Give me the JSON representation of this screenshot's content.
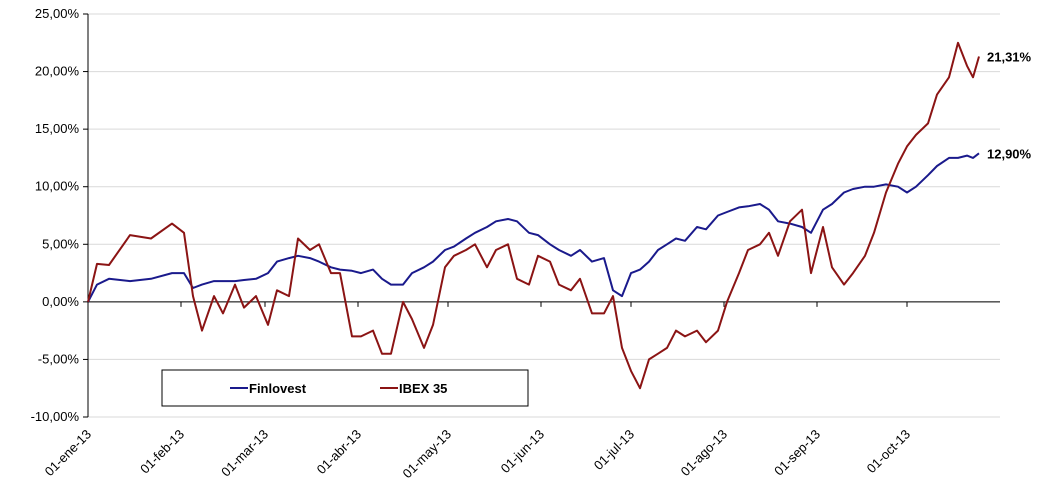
{
  "chart_data": {
    "type": "line",
    "x": [
      "2013-01-01",
      "2013-01-04",
      "2013-01-08",
      "2013-01-15",
      "2013-01-22",
      "2013-01-29",
      "2013-02-02",
      "2013-02-05",
      "2013-02-08",
      "2013-02-12",
      "2013-02-15",
      "2013-02-19",
      "2013-02-22",
      "2013-02-26",
      "2013-03-02",
      "2013-03-05",
      "2013-03-09",
      "2013-03-12",
      "2013-03-16",
      "2013-03-19",
      "2013-03-23",
      "2013-03-26",
      "2013-03-30",
      "2013-04-02",
      "2013-04-06",
      "2013-04-09",
      "2013-04-12",
      "2013-04-16",
      "2013-04-19",
      "2013-04-23",
      "2013-04-26",
      "2013-04-30",
      "2013-05-03",
      "2013-05-07",
      "2013-05-10",
      "2013-05-14",
      "2013-05-17",
      "2013-05-21",
      "2013-05-24",
      "2013-05-28",
      "2013-05-31",
      "2013-06-04",
      "2013-06-07",
      "2013-06-11",
      "2013-06-14",
      "2013-06-18",
      "2013-06-22",
      "2013-06-25",
      "2013-06-28",
      "2013-07-01",
      "2013-07-04",
      "2013-07-07",
      "2013-07-10",
      "2013-07-13",
      "2013-07-16",
      "2013-07-19",
      "2013-07-23",
      "2013-07-26",
      "2013-07-30",
      "2013-08-02",
      "2013-08-06",
      "2013-08-09",
      "2013-08-13",
      "2013-08-16",
      "2013-08-19",
      "2013-08-23",
      "2013-08-27",
      "2013-08-30",
      "2013-09-03",
      "2013-09-06",
      "2013-09-10",
      "2013-09-13",
      "2013-09-17",
      "2013-09-20",
      "2013-09-24",
      "2013-09-28",
      "2013-10-01",
      "2013-10-04",
      "2013-10-08",
      "2013-10-11",
      "2013-10-15",
      "2013-10-18",
      "2013-10-21",
      "2013-10-23",
      "2013-10-25"
    ],
    "series": [
      {
        "name": "Finlovest",
        "color": "#1a1a8c",
        "values": [
          0,
          1.5,
          2.0,
          1.8,
          2.0,
          2.5,
          2.5,
          1.2,
          1.5,
          1.8,
          1.8,
          1.8,
          1.9,
          2.0,
          2.5,
          3.5,
          3.8,
          4.0,
          3.8,
          3.5,
          3.0,
          2.8,
          2.7,
          2.5,
          2.8,
          2.0,
          1.5,
          1.5,
          2.5,
          3.0,
          3.5,
          4.5,
          4.8,
          5.5,
          6.0,
          6.5,
          7.0,
          7.2,
          7.0,
          6.0,
          5.8,
          5.0,
          4.5,
          4.0,
          4.5,
          3.5,
          3.8,
          1.0,
          0.5,
          2.5,
          2.8,
          3.5,
          4.5,
          5.0,
          5.5,
          5.3,
          6.5,
          6.3,
          7.5,
          7.8,
          8.2,
          8.3,
          8.5,
          8.0,
          7.0,
          6.8,
          6.5,
          6.0,
          8.0,
          8.5,
          9.5,
          9.8,
          10.0,
          10.0,
          10.2,
          10.0,
          9.5,
          10.0,
          11.0,
          11.8,
          12.5,
          12.5,
          12.7,
          12.5,
          12.9
        ],
        "value_labels": [
          null,
          null,
          null,
          null,
          null,
          null,
          null,
          null,
          null,
          null,
          null,
          null,
          null,
          null,
          null,
          null,
          null,
          null,
          null,
          null,
          null,
          null,
          null,
          null,
          null,
          null,
          null,
          null,
          null,
          null,
          null,
          null,
          null,
          null,
          null,
          null,
          null,
          null,
          null,
          null,
          null,
          null,
          null,
          null,
          null,
          null,
          null,
          null,
          null,
          null,
          null,
          null,
          null,
          null,
          null,
          null,
          null,
          null,
          null,
          null,
          null,
          null,
          null,
          null,
          null,
          null,
          null,
          null,
          null,
          null,
          null,
          null,
          null,
          null,
          null,
          null,
          null,
          null,
          null,
          null,
          null,
          null,
          null,
          null,
          "12,90%"
        ]
      },
      {
        "name": "IBEX 35",
        "color": "#8b1414",
        "values": [
          0,
          3.3,
          3.2,
          5.8,
          5.5,
          6.8,
          6.0,
          0.5,
          -2.5,
          0.5,
          -1,
          1.5,
          -0.5,
          0.5,
          -2,
          1,
          0.5,
          5.5,
          4.5,
          5.0,
          2.5,
          2.5,
          -3,
          -3,
          -2.5,
          -4.5,
          -4.5,
          0,
          -1.5,
          -4,
          -2,
          3,
          4,
          4.5,
          5.0,
          3.0,
          4.5,
          5.0,
          2.0,
          1.5,
          4.0,
          3.5,
          1.5,
          1.0,
          2.0,
          -1.0,
          -1.0,
          0.5,
          -4,
          -6,
          -7.5,
          -5,
          -4.5,
          -4,
          -2.5,
          -3,
          -2.5,
          -3.5,
          -2.5,
          0,
          2.5,
          4.5,
          5,
          6.0,
          4.0,
          7,
          8.0,
          2.5,
          6.5,
          3.0,
          1.5,
          2.5,
          4.0,
          6.0,
          9.5,
          12.0,
          13.5,
          14.5,
          15.5,
          18.0,
          19.5,
          22.5,
          20.5,
          19.5,
          21.31
        ],
        "value_labels": [
          null,
          null,
          null,
          null,
          null,
          null,
          null,
          null,
          null,
          null,
          null,
          null,
          null,
          null,
          null,
          null,
          null,
          null,
          null,
          null,
          null,
          null,
          null,
          null,
          null,
          null,
          null,
          null,
          null,
          null,
          null,
          null,
          null,
          null,
          null,
          null,
          null,
          null,
          null,
          null,
          null,
          null,
          null,
          null,
          null,
          null,
          null,
          null,
          null,
          null,
          null,
          null,
          null,
          null,
          null,
          null,
          null,
          null,
          null,
          null,
          null,
          null,
          null,
          null,
          null,
          null,
          null,
          null,
          null,
          null,
          null,
          null,
          null,
          null,
          null,
          null,
          null,
          null,
          null,
          null,
          null,
          null,
          null,
          null,
          "21,31%"
        ]
      }
    ],
    "xlim": [
      "2013-01-01",
      "2013-10-25"
    ],
    "xticks": [
      {
        "value": "2013-01-01",
        "label": "01-ene-13"
      },
      {
        "value": "2013-02-01",
        "label": "01-feb-13"
      },
      {
        "value": "2013-03-01",
        "label": "01-mar-13"
      },
      {
        "value": "2013-04-01",
        "label": "01-abr-13"
      },
      {
        "value": "2013-05-01",
        "label": "01-may-13"
      },
      {
        "value": "2013-06-01",
        "label": "01-jun-13"
      },
      {
        "value": "2013-07-01",
        "label": "01-jul-13"
      },
      {
        "value": "2013-08-01",
        "label": "01-ago-13"
      },
      {
        "value": "2013-09-01",
        "label": "01-sep-13"
      },
      {
        "value": "2013-10-01",
        "label": "01-oct-13"
      }
    ],
    "ylim": [
      -10,
      25
    ],
    "yticks": [
      {
        "value": -10,
        "label": "-10,00%"
      },
      {
        "value": -5,
        "label": "-5,00%"
      },
      {
        "value": 0,
        "label": "0,00%"
      },
      {
        "value": 5,
        "label": "5,00%"
      },
      {
        "value": 10,
        "label": "10,00%"
      },
      {
        "value": 15,
        "label": "15,00%"
      },
      {
        "value": 20,
        "label": "20,00%"
      },
      {
        "value": 25,
        "label": "25,00%"
      }
    ],
    "grid": true,
    "legend": "bottom-left"
  }
}
